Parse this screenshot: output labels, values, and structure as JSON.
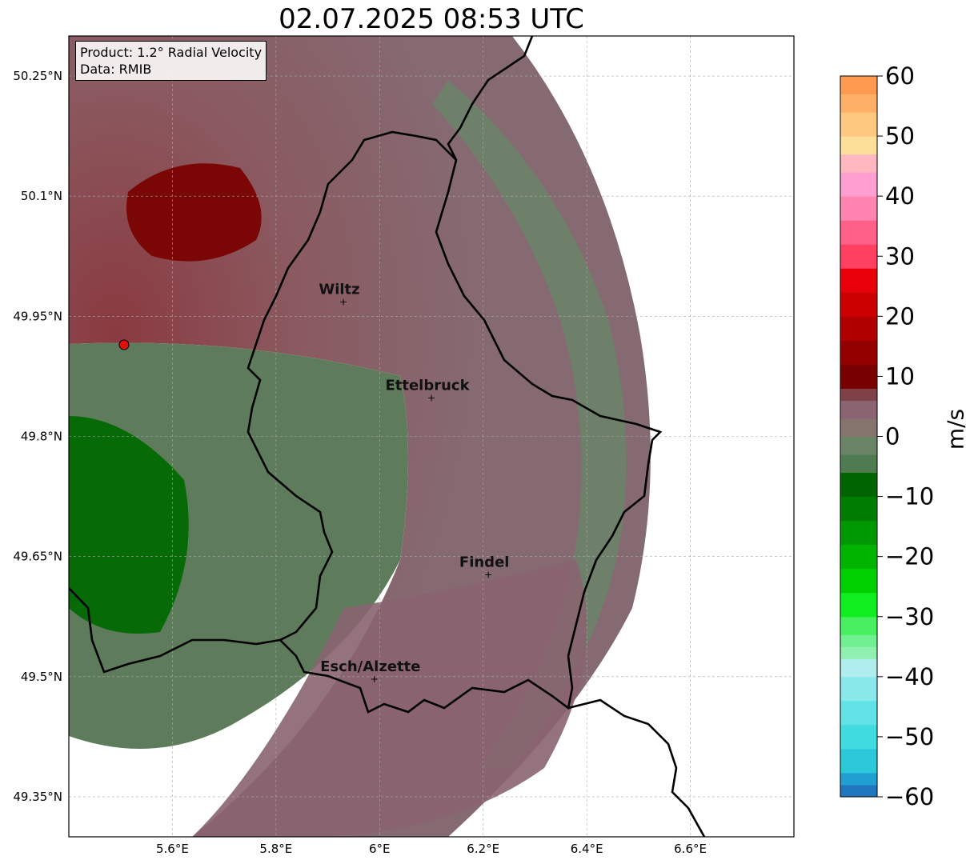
{
  "title": "02.07.2025 08:53 UTC",
  "info": {
    "product": "Product: 1.2° Radial Velocity",
    "data": "Data: RMIB"
  },
  "map": {
    "lon_range": [
      5.4,
      6.8
    ],
    "lat_range": [
      49.3,
      50.3
    ],
    "lat_ticks": [
      {
        "value": 50.25,
        "label": "50.25°N"
      },
      {
        "value": 50.1,
        "label": "50.1°N"
      },
      {
        "value": 49.95,
        "label": "49.95°N"
      },
      {
        "value": 49.8,
        "label": "49.8°N"
      },
      {
        "value": 49.65,
        "label": "49.65°N"
      },
      {
        "value": 49.5,
        "label": "49.5°N"
      },
      {
        "value": 49.35,
        "label": "49.35°N"
      }
    ],
    "lon_ticks": [
      {
        "value": 5.6,
        "label": "5.6°E"
      },
      {
        "value": 5.8,
        "label": "5.8°E"
      },
      {
        "value": 6.0,
        "label": "6°E"
      },
      {
        "value": 6.2,
        "label": "6.2°E"
      },
      {
        "value": 6.4,
        "label": "6.4°E"
      },
      {
        "value": 6.6,
        "label": "6.6°E"
      }
    ],
    "radar_site": {
      "lon": 5.51,
      "lat": 49.914,
      "color": "#e01010"
    },
    "cities": [
      {
        "name": "Wiltz",
        "lon": 5.93,
        "lat": 49.968
      },
      {
        "name": "Ettelbruck",
        "lon": 6.1,
        "lat": 49.848
      },
      {
        "name": "Findel",
        "lon": 6.21,
        "lat": 49.627
      },
      {
        "name": "Esch/Alzette",
        "lon": 5.99,
        "lat": 49.497
      }
    ]
  },
  "colorbar": {
    "unit": "m/s",
    "min": -60,
    "max": 60,
    "ticks": [
      {
        "value": 60,
        "label": "60"
      },
      {
        "value": 50,
        "label": "50"
      },
      {
        "value": 40,
        "label": "40"
      },
      {
        "value": 30,
        "label": "30"
      },
      {
        "value": 20,
        "label": "20"
      },
      {
        "value": 10,
        "label": "10"
      },
      {
        "value": 0,
        "label": "0"
      },
      {
        "value": -10,
        "label": "−10"
      },
      {
        "value": -20,
        "label": "−20"
      },
      {
        "value": -30,
        "label": "−30"
      },
      {
        "value": -40,
        "label": "−40"
      },
      {
        "value": -50,
        "label": "−50"
      },
      {
        "value": -60,
        "label": "−60"
      }
    ],
    "stops": [
      {
        "from": -60,
        "to": -58,
        "color": "#1f77c0"
      },
      {
        "from": -58,
        "to": -56,
        "color": "#20a0d0"
      },
      {
        "from": -56,
        "to": -52,
        "color": "#2ac8d8"
      },
      {
        "from": -52,
        "to": -48,
        "color": "#40dce0"
      },
      {
        "from": -48,
        "to": -44,
        "color": "#60e2e6"
      },
      {
        "from": -44,
        "to": -40,
        "color": "#88e8ea"
      },
      {
        "from": -40,
        "to": -37,
        "color": "#b0eeee"
      },
      {
        "from": -37,
        "to": -35,
        "color": "#90f0b0"
      },
      {
        "from": -35,
        "to": -33,
        "color": "#70f090"
      },
      {
        "from": -33,
        "to": -30,
        "color": "#48f060"
      },
      {
        "from": -30,
        "to": -26,
        "color": "#10ee20"
      },
      {
        "from": -26,
        "to": -22,
        "color": "#00d000"
      },
      {
        "from": -22,
        "to": -18,
        "color": "#00b400"
      },
      {
        "from": -18,
        "to": -14,
        "color": "#009800"
      },
      {
        "from": -14,
        "to": -10,
        "color": "#007c00"
      },
      {
        "from": -10,
        "to": -6,
        "color": "#006400"
      },
      {
        "from": -6,
        "to": -3,
        "color": "#4e7c50"
      },
      {
        "from": -3,
        "to": 0,
        "color": "#6a8466"
      },
      {
        "from": 0,
        "to": 3,
        "color": "#86746e"
      },
      {
        "from": 3,
        "to": 6,
        "color": "#8a6470"
      },
      {
        "from": 6,
        "to": 8,
        "color": "#804048"
      },
      {
        "from": 8,
        "to": 12,
        "color": "#780000"
      },
      {
        "from": 12,
        "to": 16,
        "color": "#940000"
      },
      {
        "from": 16,
        "to": 20,
        "color": "#b00000"
      },
      {
        "from": 20,
        "to": 24,
        "color": "#cc0000"
      },
      {
        "from": 24,
        "to": 28,
        "color": "#e80008"
      },
      {
        "from": 28,
        "to": 32,
        "color": "#ff4060"
      },
      {
        "from": 32,
        "to": 36,
        "color": "#ff6088"
      },
      {
        "from": 36,
        "to": 40,
        "color": "#ff84b0"
      },
      {
        "from": 40,
        "to": 44,
        "color": "#ff9ed0"
      },
      {
        "from": 44,
        "to": 47,
        "color": "#ffb8c0"
      },
      {
        "from": 47,
        "to": 50,
        "color": "#ffe09a"
      },
      {
        "from": 50,
        "to": 54,
        "color": "#ffc880"
      },
      {
        "from": 54,
        "to": 57,
        "color": "#ffb068"
      },
      {
        "from": 57,
        "to": 60,
        "color": "#ff9a50"
      }
    ]
  }
}
